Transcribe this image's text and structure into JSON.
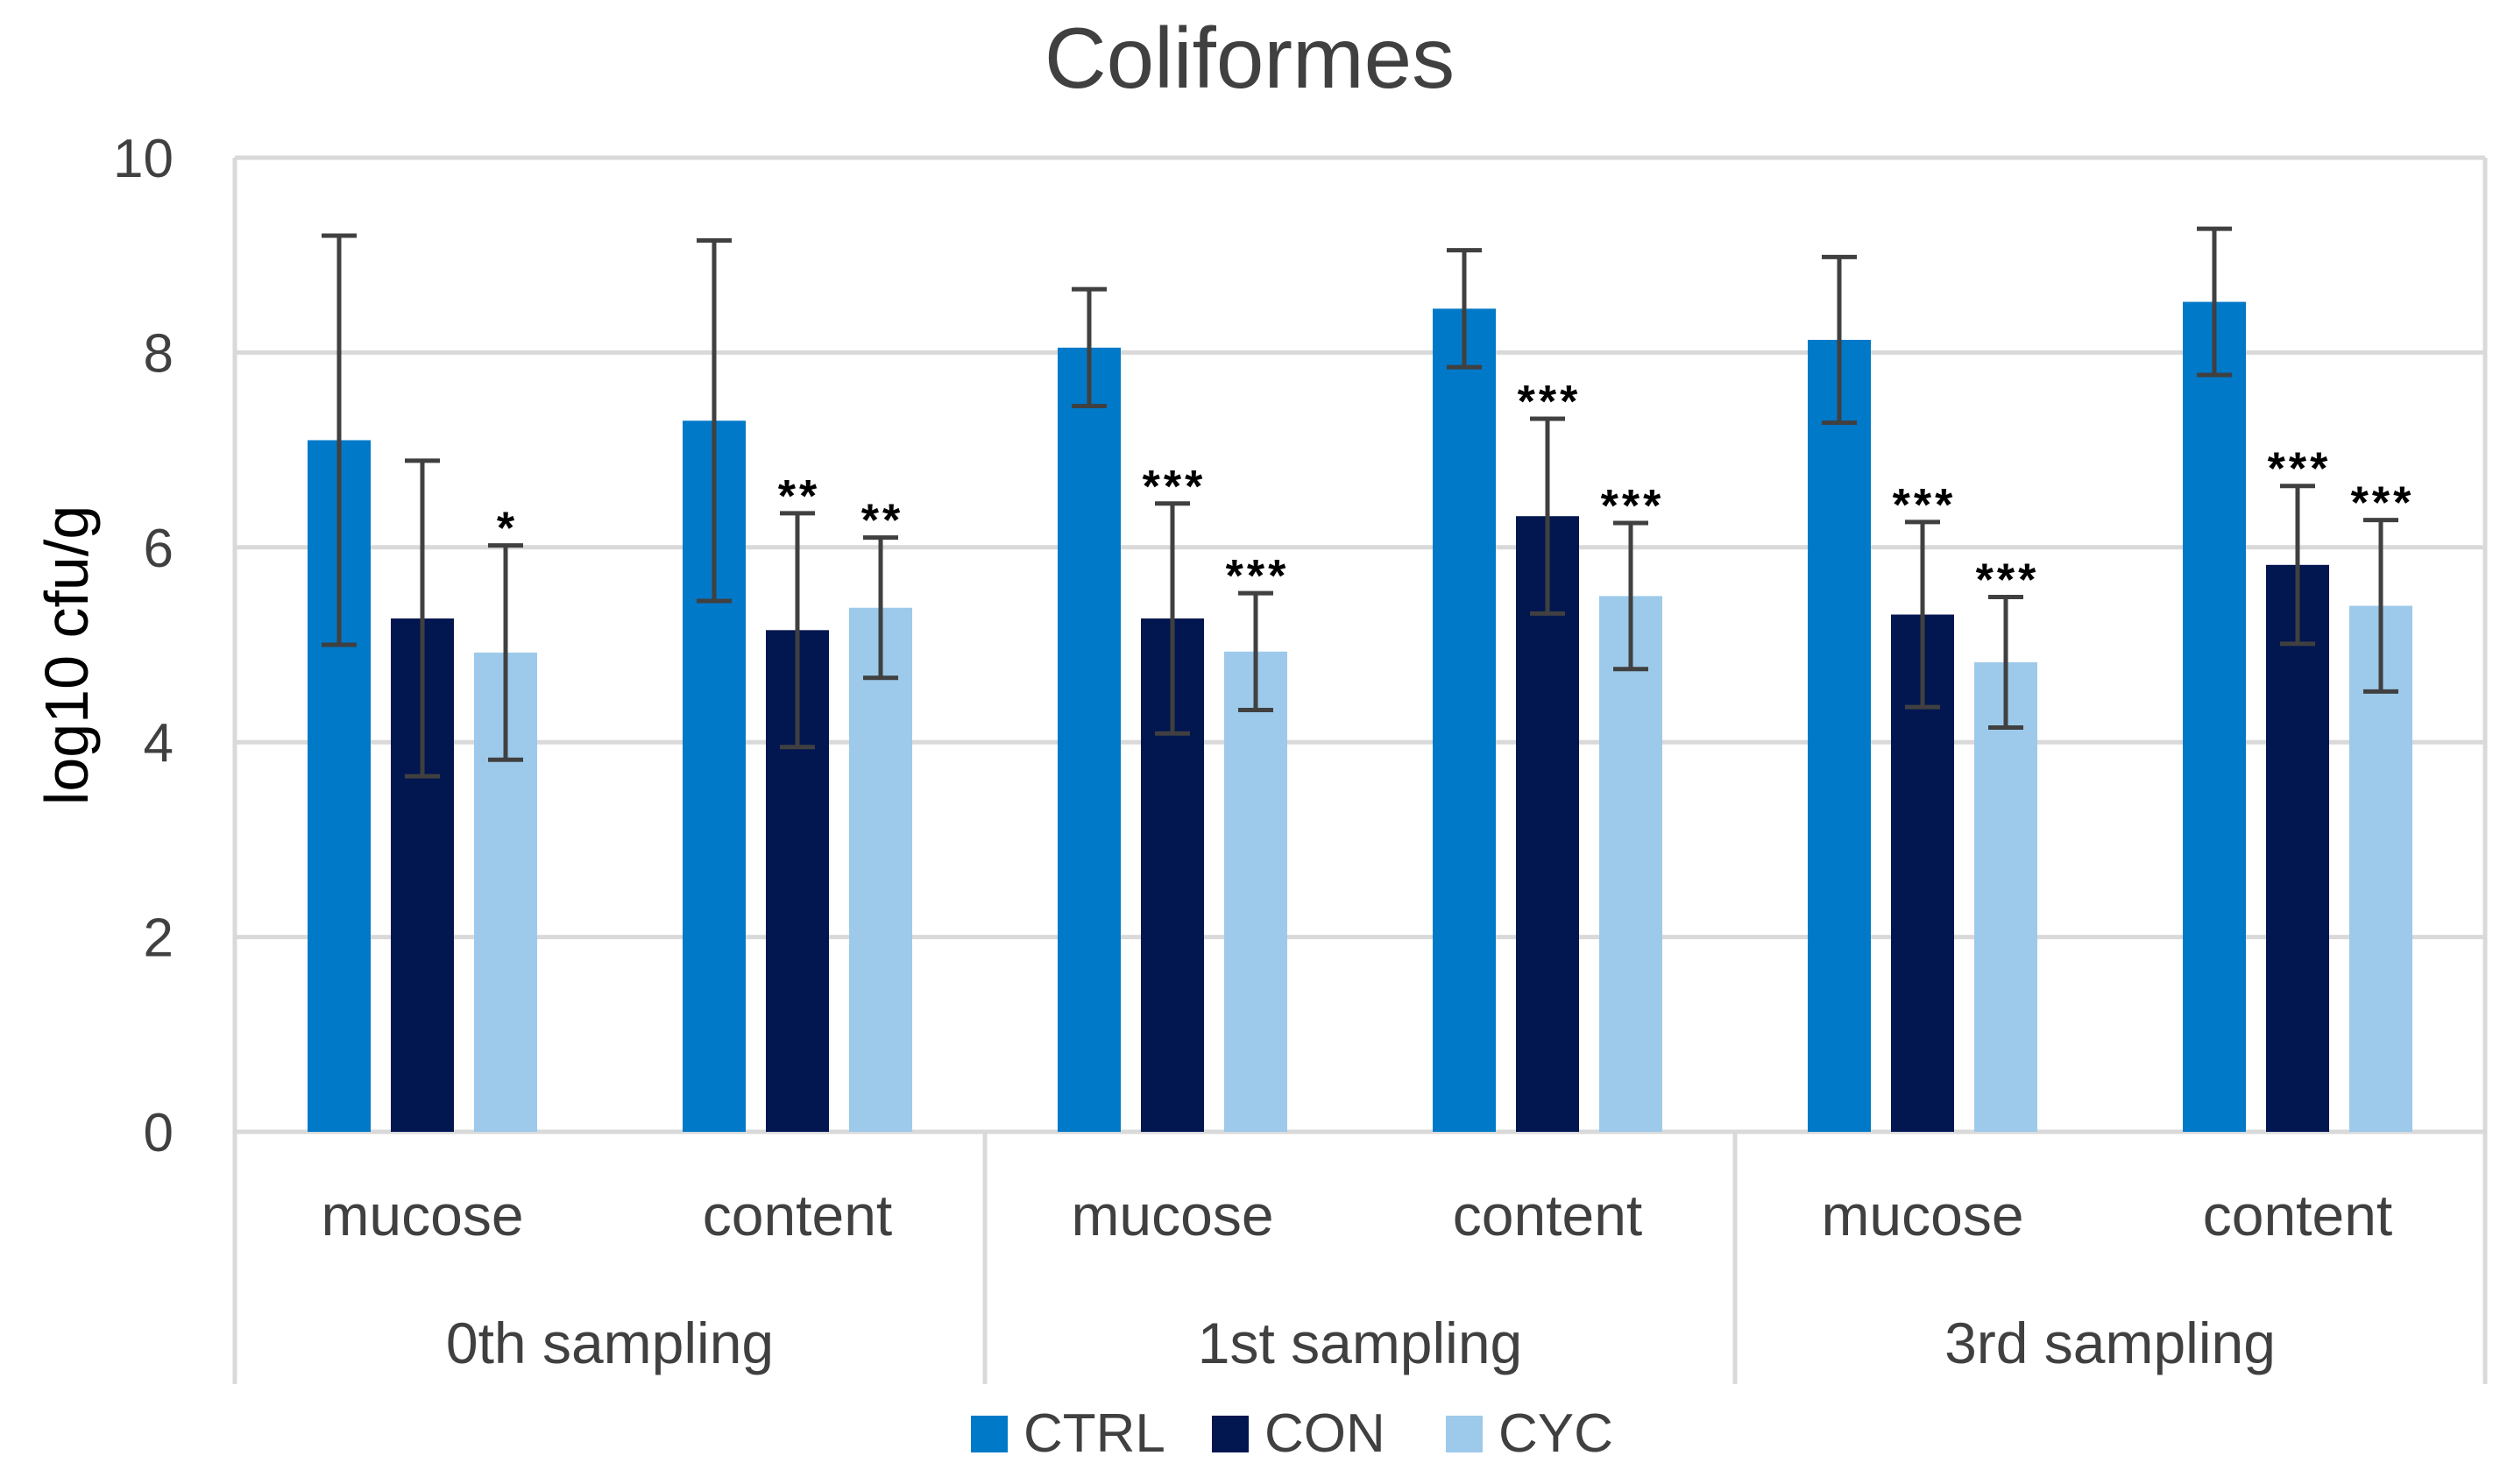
{
  "chart_data": {
    "type": "bar",
    "title": "Coliformes",
    "ylabel": "log10 cfu/g",
    "xlabel": "",
    "ylim": [
      0,
      10
    ],
    "yticks": [
      0,
      2,
      4,
      6,
      8,
      10
    ],
    "grid": true,
    "legend_position": "bottom",
    "groups": [
      "0th sampling",
      "1st sampling",
      "3rd sampling"
    ],
    "categories": [
      "mucose",
      "content",
      "mucose",
      "content",
      "mucose",
      "content"
    ],
    "series": [
      {
        "name": "CTRL",
        "color": "#0079C8",
        "values": [
          7.1,
          7.3,
          8.05,
          8.45,
          8.13,
          8.52
        ],
        "errors": [
          2.1,
          1.85,
          0.6,
          0.6,
          0.85,
          0.75
        ],
        "significance": [
          "",
          "",
          "",
          "",
          "",
          ""
        ]
      },
      {
        "name": "CON",
        "color": "#021650",
        "values": [
          5.27,
          5.15,
          5.27,
          6.32,
          5.31,
          5.82
        ],
        "errors": [
          1.62,
          1.2,
          1.18,
          1.0,
          0.95,
          0.81
        ],
        "significance": [
          "",
          "**",
          "***",
          "***",
          "***",
          "***"
        ]
      },
      {
        "name": "CYC",
        "color": "#9DCAEA",
        "values": [
          4.92,
          5.38,
          4.93,
          5.5,
          4.82,
          5.4
        ],
        "errors": [
          1.1,
          0.72,
          0.6,
          0.75,
          0.67,
          0.88
        ],
        "significance": [
          "*",
          "**",
          "***",
          "***",
          "***",
          "***"
        ]
      }
    ]
  }
}
